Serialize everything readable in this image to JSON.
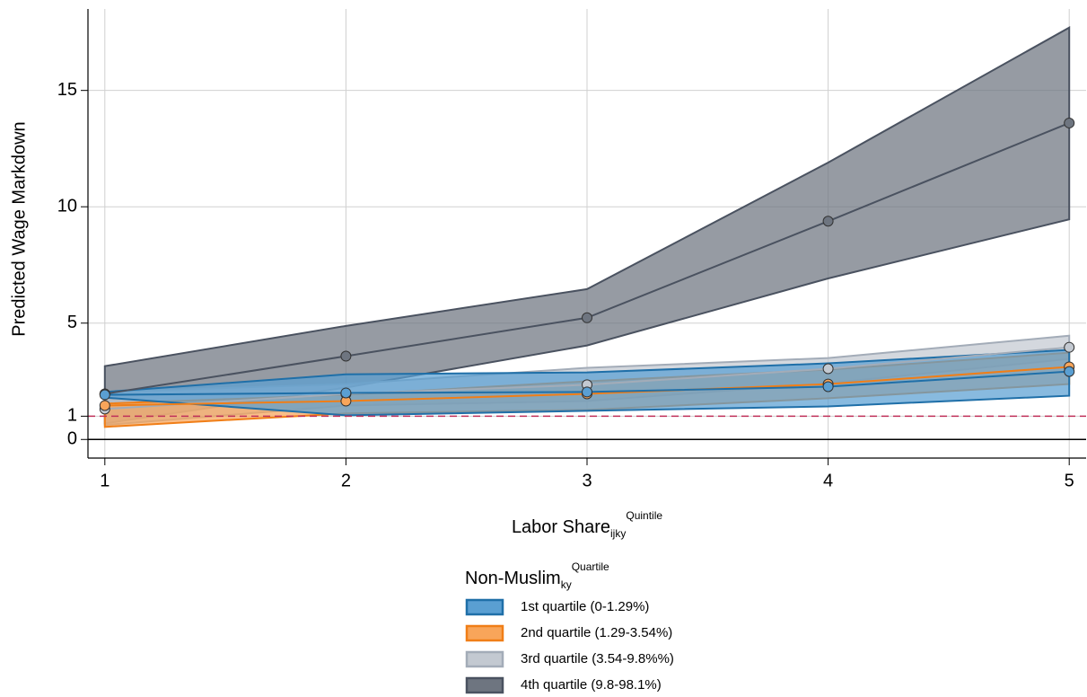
{
  "chart_data": {
    "type": "line-band",
    "x_label": {
      "text": "Labor Share",
      "sub": "ijky",
      "sup": "Quintile"
    },
    "y_label": "Predicted Wage Markdown",
    "legend_title": {
      "text": "Non-Muslim",
      "sub": "ky",
      "sup": "Quartile"
    },
    "x": [
      1,
      2,
      3,
      4,
      5
    ],
    "xlim": [
      0.93,
      5.07
    ],
    "xticks": [
      1,
      2,
      3,
      4,
      5
    ],
    "ylim": [
      -0.8,
      18.5
    ],
    "yticks": [
      0,
      1,
      5,
      10,
      15
    ],
    "grid": true,
    "zero_line": {
      "value": 0,
      "color": "#000000"
    },
    "reference_line": {
      "value": 1,
      "color": "#c0305a",
      "dashed": true
    },
    "series": [
      {
        "name": "1st quartile (0-1.29%)",
        "color": "#1f6fa8",
        "fill": "#5a9fd2",
        "values": [
          1.92,
          2.0,
          2.04,
          2.27,
          2.92
        ],
        "upper": [
          2.04,
          2.8,
          2.88,
          3.27,
          3.85
        ],
        "lower": [
          1.8,
          1.04,
          1.23,
          1.42,
          1.88
        ]
      },
      {
        "name": "2nd quartile (1.29-3.54%)",
        "color": "#f07e17",
        "fill": "#f8a55a",
        "values": [
          1.46,
          1.65,
          1.96,
          2.38,
          3.12
        ],
        "upper": [
          1.54,
          1.92,
          2.5,
          3.0,
          3.73
        ],
        "lower": [
          0.54,
          1.12,
          1.27,
          1.77,
          2.38
        ]
      },
      {
        "name": "3rd quartile (3.54-9.8%%)",
        "color": "#a3acb8",
        "fill": "#c3c9d1",
        "values": [
          1.31,
          1.96,
          2.35,
          3.04,
          3.96
        ],
        "upper": [
          2.04,
          2.38,
          3.08,
          3.5,
          4.46
        ],
        "lower": [
          0.62,
          1.46,
          1.65,
          2.42,
          3.46
        ]
      },
      {
        "name": "4th quartile (9.8-98.1%)",
        "color": "#4a5260",
        "fill": "#6e7580",
        "values": [
          1.96,
          3.58,
          5.23,
          9.38,
          13.6
        ],
        "upper": [
          3.15,
          4.88,
          6.46,
          11.9,
          17.7
        ],
        "lower": [
          0.69,
          2.23,
          4.04,
          6.92,
          9.46
        ]
      }
    ]
  }
}
